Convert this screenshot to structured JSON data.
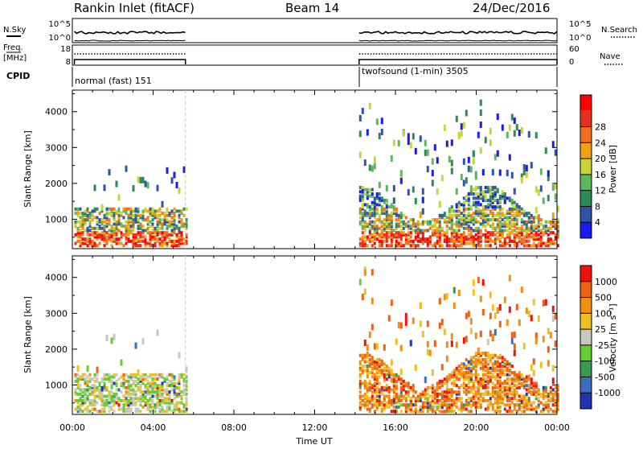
{
  "header": {
    "station": "Rankin Inlet (fitACF)",
    "beam": "Beam 14",
    "date": "24/Dec/2016"
  },
  "strips": {
    "nsky_label": "N.Sky",
    "nsky_ticks": [
      "10^5",
      "10^0"
    ],
    "nsearch_label": "N.Search",
    "nsearch_ticks": [
      "10^5",
      "10^0"
    ],
    "freq_label_1": "Freq.",
    "freq_label_2": "[MHz]",
    "freq_ticks": [
      "18",
      "8"
    ],
    "nave_label": "Nave",
    "nave_ticks": [
      "60",
      "0"
    ],
    "cpid_label": "CPID",
    "cpid_1": "normal (fast) 151",
    "cpid_2": "twofsound (1-min) 3505"
  },
  "chart_data": [
    {
      "type": "heatmap",
      "title": "",
      "xlabel": "Time UT",
      "ylabel": "Slant Range [km]",
      "x_ticks": [
        "00:00",
        "04:00",
        "08:00",
        "12:00",
        "16:00",
        "20:00",
        "00:00"
      ],
      "y_ticks": [
        "1000",
        "2000",
        "3000",
        "4000"
      ],
      "ylim": [
        180,
        4600
      ],
      "colorbar": {
        "label": "Power [dB]",
        "ticks": [
          "4",
          "8",
          "12",
          "16",
          "20",
          "24",
          "28"
        ],
        "colors": [
          "#1a1aee",
          "#2d55a8",
          "#2e8b57",
          "#5cb85c",
          "#c8d53a",
          "#f0a010",
          "#f07020",
          "#e83020",
          "#ff0000"
        ]
      },
      "data_intervals_hours": [
        [
          0.1,
          5.6
        ],
        [
          14.2,
          24.0
        ]
      ]
    },
    {
      "type": "heatmap",
      "title": "",
      "xlabel": "Time UT",
      "ylabel": "Slant Range [km]",
      "x_ticks": [
        "00:00",
        "04:00",
        "08:00",
        "12:00",
        "16:00",
        "20:00",
        "00:00"
      ],
      "y_ticks": [
        "1000",
        "2000",
        "3000",
        "4000"
      ],
      "ylim": [
        180,
        4600
      ],
      "colorbar": {
        "label": "Velocity [m s⁻¹]",
        "ticks": [
          "1000",
          "500",
          "100",
          "25",
          "-25",
          "-100",
          "-500",
          "-1000"
        ],
        "colors": [
          "#2035b0",
          "#3a6ec0",
          "#3a9a50",
          "#66cc33",
          "#c8c8c0",
          "#f0c020",
          "#f09010",
          "#f06010",
          "#ee1010"
        ]
      },
      "data_intervals_hours": [
        [
          0.1,
          5.6
        ],
        [
          14.2,
          24.0
        ]
      ]
    }
  ]
}
